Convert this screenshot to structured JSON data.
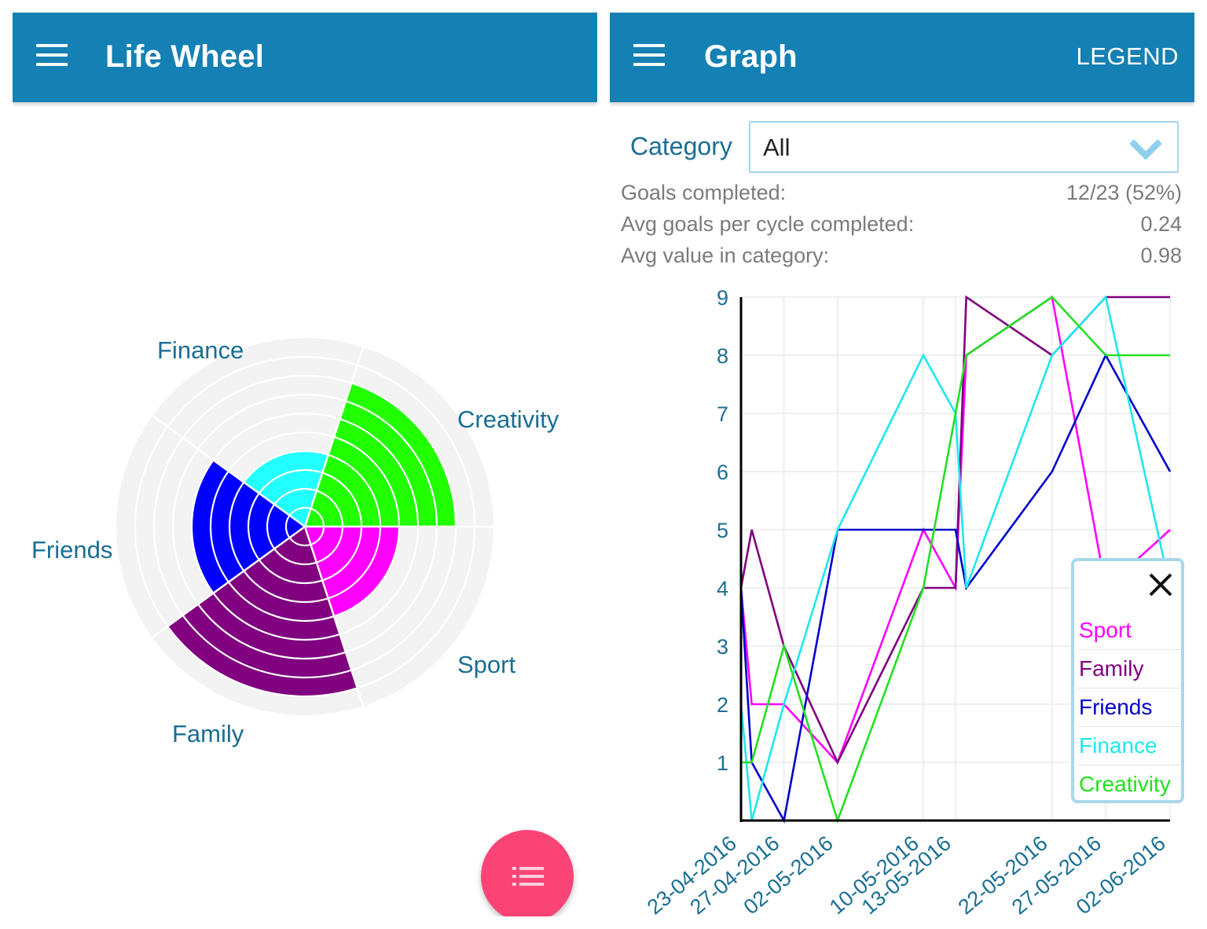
{
  "left_screen": {
    "appbar": {
      "title": "Life Wheel",
      "menu_icon": "hamburger-menu-icon"
    },
    "fab": {
      "icon": "list-icon"
    }
  },
  "right_screen": {
    "appbar": {
      "title": "Graph",
      "menu_icon": "hamburger-menu-icon",
      "action_label": "LEGEND"
    },
    "category": {
      "label": "Category",
      "selected": "All",
      "icon": "chevron-down-icon"
    },
    "stats": [
      {
        "label": "Goals completed:",
        "value": "12/23 (52%)"
      },
      {
        "label": "Avg goals per cycle completed:",
        "value": "0.24"
      },
      {
        "label": "Avg value in category:",
        "value": "0.98"
      }
    ],
    "legend_popup": {
      "close_icon": "close-icon",
      "items": [
        {
          "label": "Sport",
          "color": "#ff00ff"
        },
        {
          "label": "Family",
          "color": "#800080"
        },
        {
          "label": "Friends",
          "color": "#0000cc"
        },
        {
          "label": "Finance",
          "color": "#1ee8f0"
        },
        {
          "label": "Creativity",
          "color": "#22e022"
        }
      ]
    }
  },
  "colors": {
    "appbar": "#1580b3",
    "label_text": "#1a6e94",
    "fab": "#fb4476",
    "ring_bg": "#f3f3f3"
  },
  "chart_data": [
    {
      "type": "polar-area",
      "title": "Life Wheel",
      "max_value": 10,
      "categories": [
        "Creativity",
        "Finance",
        "Friends",
        "Family",
        "Sport"
      ],
      "values": [
        8,
        4,
        6,
        9,
        5
      ],
      "colors": [
        "#22ff00",
        "#22ffff",
        "#0000ff",
        "#800080",
        "#ff00ff"
      ]
    },
    {
      "type": "line",
      "title": "Graph",
      "xlabel": "",
      "ylabel": "",
      "ylim": [
        0,
        9
      ],
      "yticks": [
        1,
        2,
        3,
        4,
        5,
        6,
        7,
        8,
        9
      ],
      "x_tick_labels": [
        "23-04-2016",
        "27-04-2016",
        "02-05-2016",
        "10-05-2016",
        "13-05-2016",
        "22-05-2016",
        "27-05-2016",
        "02-06-2016"
      ],
      "x_tick_days": [
        0,
        4,
        9,
        17,
        20,
        29,
        34,
        40
      ],
      "grid": true,
      "legend_position": "bottom-right overlay",
      "series": [
        {
          "name": "Sport",
          "color": "#ff00ff",
          "x_days": [
            0,
            1,
            4,
            9,
            17,
            20,
            21,
            29,
            34,
            40
          ],
          "values": [
            4,
            2,
            2,
            1,
            5,
            4,
            8,
            9,
            4,
            5
          ]
        },
        {
          "name": "Family",
          "color": "#800080",
          "x_days": [
            0,
            1,
            4,
            9,
            17,
            20,
            21,
            29,
            34,
            40
          ],
          "values": [
            4,
            5,
            3,
            1,
            4,
            4,
            9,
            8,
            9,
            9
          ]
        },
        {
          "name": "Friends",
          "color": "#0000cc",
          "x_days": [
            0,
            1,
            4,
            9,
            17,
            20,
            21,
            29,
            34,
            40
          ],
          "values": [
            4,
            1,
            0,
            5,
            5,
            5,
            4,
            6,
            8,
            6
          ]
        },
        {
          "name": "Finance",
          "color": "#1ee8f0",
          "x_days": [
            0,
            1,
            4,
            9,
            17,
            20,
            21,
            29,
            34,
            40
          ],
          "values": [
            2,
            0,
            2,
            5,
            8,
            7,
            4,
            8,
            9,
            4
          ]
        },
        {
          "name": "Creativity",
          "color": "#22e022",
          "x_days": [
            0,
            1,
            4,
            9,
            17,
            20,
            21,
            29,
            34,
            40
          ],
          "values": [
            1,
            1,
            3,
            0,
            4,
            7,
            8,
            9,
            8,
            8
          ]
        }
      ]
    }
  ]
}
